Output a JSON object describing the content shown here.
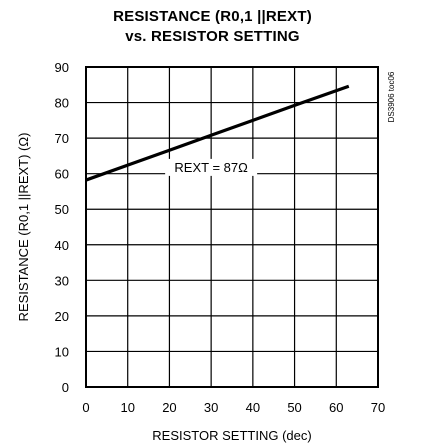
{
  "chart_data": {
    "type": "line",
    "title": "RESISTANCE (R0,1 ||REXT)",
    "subtitle": "vs. RESISTOR SETTING",
    "xlabel": "RESISTOR SETTING (dec)",
    "ylabel": "RESISTANCE (R0,1 ||REXT) (Ω)",
    "xlim": [
      0,
      70
    ],
    "ylim": [
      0,
      90
    ],
    "x_ticks": [
      0,
      10,
      20,
      30,
      40,
      50,
      60,
      70
    ],
    "y_ticks": [
      0,
      10,
      20,
      30,
      40,
      50,
      60,
      70,
      80,
      90
    ],
    "grid": true,
    "annotation": "REXT = 87Ω",
    "figure_code": "DS3906 toc06",
    "series": [
      {
        "values": [
          {
            "x": 0,
            "y": 58.2
          },
          {
            "x": 10,
            "y": 62.4
          },
          {
            "x": 20,
            "y": 66.6
          },
          {
            "x": 30,
            "y": 70.8
          },
          {
            "x": 40,
            "y": 75.0
          },
          {
            "x": 50,
            "y": 79.2
          },
          {
            "x": 63,
            "y": 84.6
          }
        ]
      }
    ]
  }
}
